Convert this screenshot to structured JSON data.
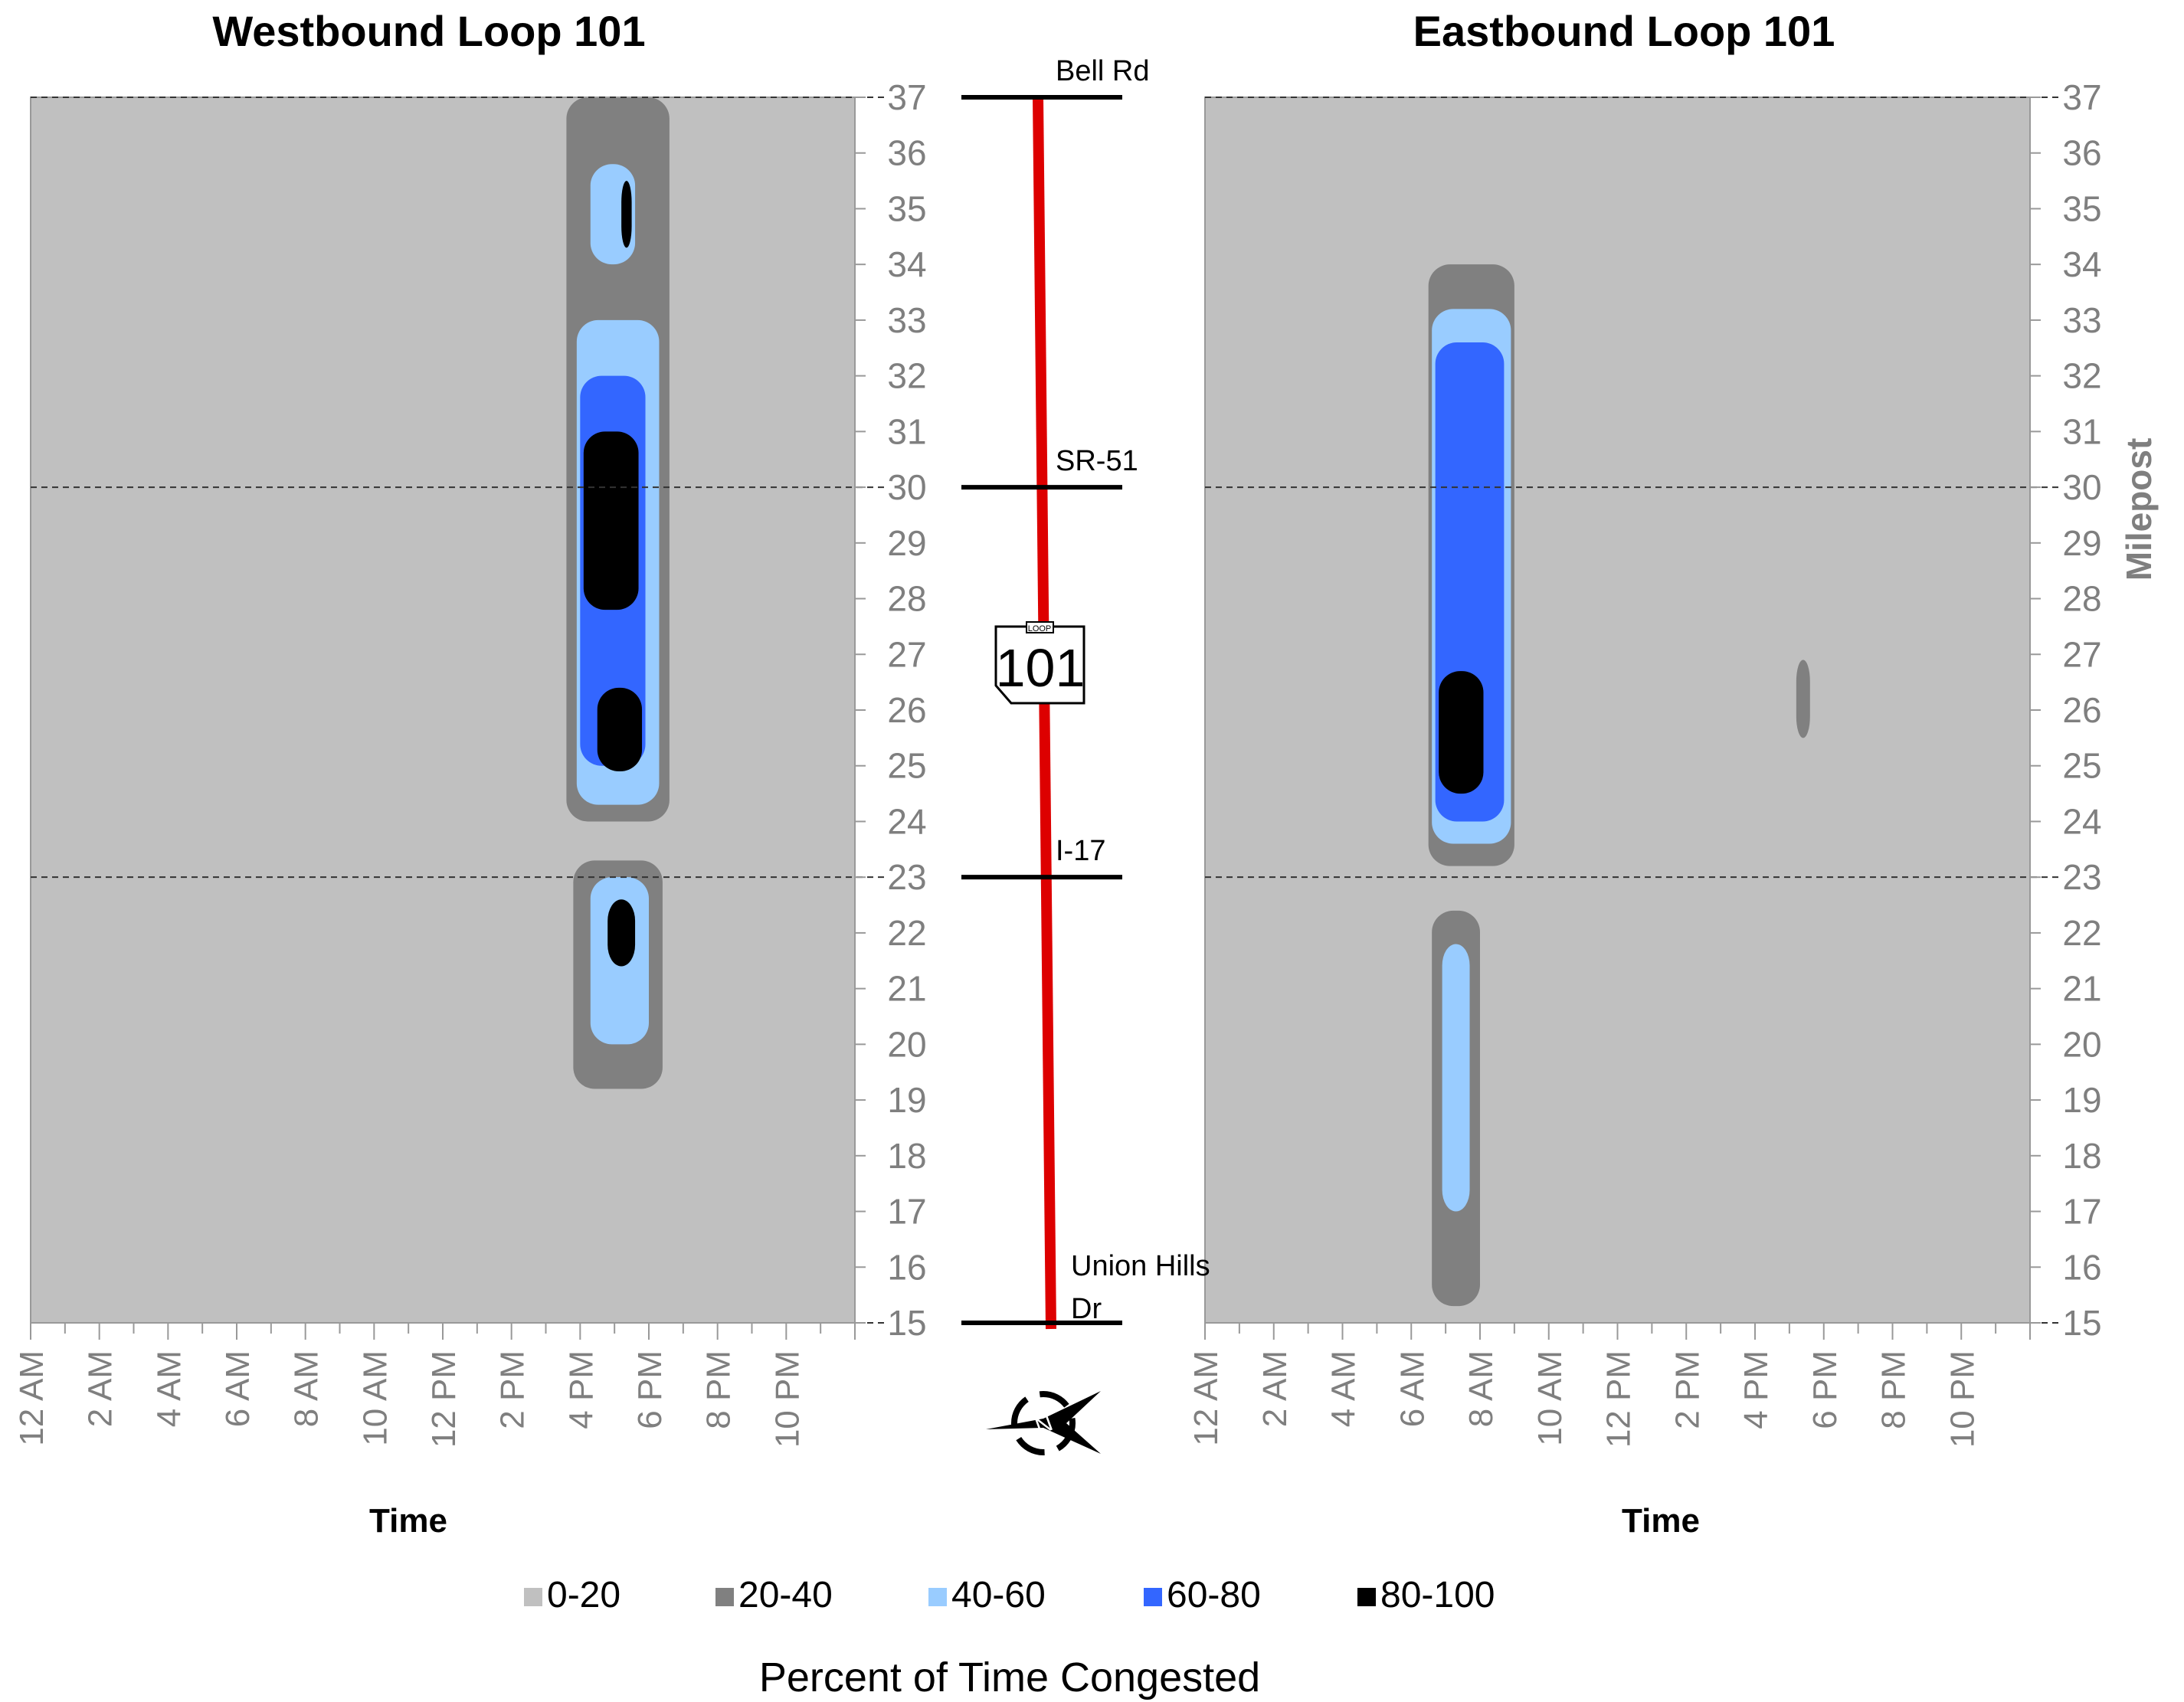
{
  "colors": {
    "0-20": "#c0c0c0",
    "20-40": "#808080",
    "40-60": "#99ccff",
    "60-80": "#3366ff",
    "80-100": "#000000",
    "route": "#dd0000"
  },
  "chart_data": [
    {
      "type": "heatmap",
      "title": "Westbound Loop 101",
      "xlabel": "Time",
      "ylabel": "",
      "x_ticks": [
        "12 AM",
        "2 AM",
        "4 AM",
        "6 AM",
        "8 AM",
        "10 AM",
        "12 PM",
        "2 PM",
        "4 PM",
        "6 PM",
        "8 PM",
        "10 PM"
      ],
      "y_ticks": [
        "15",
        "16",
        "17",
        "18",
        "19",
        "20",
        "21",
        "22",
        "23",
        "24",
        "25",
        "26",
        "27",
        "28",
        "29",
        "30",
        "31",
        "32",
        "33",
        "34",
        "35",
        "36",
        "37"
      ],
      "xlim_hours": [
        0,
        24
      ],
      "ylim": [
        15,
        37
      ],
      "background_level": "0-20",
      "congestion_regions": [
        {
          "level": "20-40",
          "t_start": 15.6,
          "t_end": 18.6,
          "mp_start": 24.0,
          "mp_end": 37.0
        },
        {
          "level": "40-60",
          "t_start": 15.9,
          "t_end": 18.3,
          "mp_start": 24.3,
          "mp_end": 33.0
        },
        {
          "level": "60-80",
          "t_start": 16.0,
          "t_end": 17.9,
          "mp_start": 25.0,
          "mp_end": 32.0
        },
        {
          "level": "80-100",
          "t_start": 16.1,
          "t_end": 17.7,
          "mp_start": 27.8,
          "mp_end": 31.0
        },
        {
          "level": "80-100",
          "t_start": 16.5,
          "t_end": 17.8,
          "mp_start": 24.9,
          "mp_end": 26.4
        },
        {
          "level": "40-60",
          "t_start": 16.3,
          "t_end": 17.6,
          "mp_start": 34.0,
          "mp_end": 35.8
        },
        {
          "level": "80-100",
          "t_start": 17.2,
          "t_end": 17.5,
          "mp_start": 34.3,
          "mp_end": 35.5
        },
        {
          "level": "20-40",
          "t_start": 15.8,
          "t_end": 18.4,
          "mp_start": 19.2,
          "mp_end": 23.3
        },
        {
          "level": "40-60",
          "t_start": 16.3,
          "t_end": 18.0,
          "mp_start": 20.0,
          "mp_end": 23.0
        },
        {
          "level": "80-100",
          "t_start": 16.8,
          "t_end": 17.6,
          "mp_start": 21.4,
          "mp_end": 22.6
        }
      ]
    },
    {
      "type": "heatmap",
      "title": "Eastbound Loop 101",
      "xlabel": "Time",
      "ylabel": "Milepost",
      "x_ticks": [
        "12 AM",
        "2 AM",
        "4 AM",
        "6 AM",
        "8 AM",
        "10 AM",
        "12 PM",
        "2 PM",
        "4 PM",
        "6 PM",
        "8 PM",
        "10 PM"
      ],
      "y_ticks": [
        "15",
        "16",
        "17",
        "18",
        "19",
        "20",
        "21",
        "22",
        "23",
        "24",
        "25",
        "26",
        "27",
        "28",
        "29",
        "30",
        "31",
        "32",
        "33",
        "34",
        "35",
        "36",
        "37"
      ],
      "xlim_hours": [
        0,
        24
      ],
      "ylim": [
        15,
        37
      ],
      "background_level": "0-20",
      "congestion_regions": [
        {
          "level": "20-40",
          "t_start": 6.5,
          "t_end": 9.0,
          "mp_start": 23.2,
          "mp_end": 34.0
        },
        {
          "level": "40-60",
          "t_start": 6.6,
          "t_end": 8.9,
          "mp_start": 23.6,
          "mp_end": 33.2
        },
        {
          "level": "60-80",
          "t_start": 6.7,
          "t_end": 8.7,
          "mp_start": 24.0,
          "mp_end": 32.6
        },
        {
          "level": "80-100",
          "t_start": 6.8,
          "t_end": 8.1,
          "mp_start": 24.5,
          "mp_end": 26.7
        },
        {
          "level": "20-40",
          "t_start": 6.6,
          "t_end": 8.0,
          "mp_start": 15.3,
          "mp_end": 22.4
        },
        {
          "level": "40-60",
          "t_start": 6.9,
          "t_end": 7.7,
          "mp_start": 17.0,
          "mp_end": 21.8
        },
        {
          "level": "20-40",
          "t_start": 17.2,
          "t_end": 17.6,
          "mp_start": 25.5,
          "mp_end": 26.9
        }
      ]
    }
  ],
  "route": {
    "landmarks": [
      {
        "name": "Bell Rd",
        "milepost": 37
      },
      {
        "name": "SR-51",
        "milepost": 30
      },
      {
        "name": "I-17",
        "milepost": 23
      },
      {
        "name": "Union Hills\nDr",
        "milepost": 15
      }
    ],
    "shield_top": "LOOP",
    "shield_number": "101",
    "north_arrow_letter": "N"
  },
  "legend": {
    "title": "Percent of Time Congested",
    "items": [
      "0-20",
      "20-40",
      "40-60",
      "60-80",
      "80-100"
    ]
  }
}
